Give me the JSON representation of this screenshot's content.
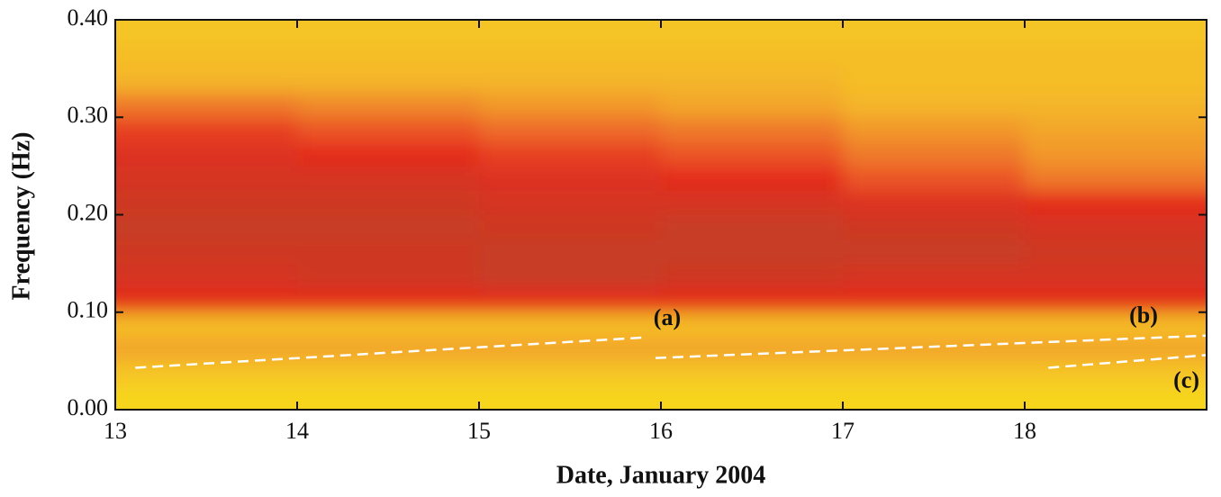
{
  "chart_data": {
    "type": "heatmap",
    "x_label": "Date, January 2004",
    "y_label": "Frequency (Hz)",
    "xlim": [
      13,
      19
    ],
    "ylim": [
      0,
      0.4
    ],
    "xticks": [
      13,
      14,
      15,
      16,
      17,
      18
    ],
    "yticks": [
      {
        "value": 0,
        "label": "0.00"
      },
      {
        "value": 0.1,
        "label": "0.10"
      },
      {
        "value": 0.2,
        "label": "0.20"
      },
      {
        "value": 0.3,
        "label": "0.30"
      },
      {
        "value": 0.4,
        "label": "0.40"
      }
    ],
    "xbins": [
      13,
      14,
      15,
      16,
      17,
      18,
      19
    ],
    "ybins": [
      0,
      0.025,
      0.05,
      0.075,
      0.1,
      0.125,
      0.15,
      0.175,
      0.2,
      0.225,
      0.25,
      0.275,
      0.3,
      0.325,
      0.35,
      0.375,
      0.4
    ],
    "z": [
      [
        0.1,
        0.1,
        0.1,
        0.1,
        0.1,
        0.1
      ],
      [
        0.2,
        0.2,
        0.2,
        0.2,
        0.2,
        0.2
      ],
      [
        0.35,
        0.35,
        0.35,
        0.35,
        0.35,
        0.35
      ],
      [
        0.25,
        0.25,
        0.25,
        0.25,
        0.25,
        0.25
      ],
      [
        0.7,
        0.7,
        0.7,
        0.7,
        0.7,
        0.7
      ],
      [
        0.8,
        0.85,
        0.9,
        0.85,
        0.8,
        0.8
      ],
      [
        0.85,
        0.85,
        0.9,
        0.9,
        0.9,
        0.85
      ],
      [
        0.9,
        0.9,
        0.85,
        0.9,
        0.85,
        0.8
      ],
      [
        0.85,
        0.85,
        0.8,
        0.8,
        0.75,
        0.7
      ],
      [
        0.8,
        0.8,
        0.75,
        0.7,
        0.6,
        0.5
      ],
      [
        0.75,
        0.7,
        0.65,
        0.6,
        0.5,
        0.4
      ],
      [
        0.65,
        0.6,
        0.55,
        0.5,
        0.4,
        0.35
      ],
      [
        0.5,
        0.45,
        0.4,
        0.35,
        0.3,
        0.3
      ],
      [
        0.3,
        0.3,
        0.3,
        0.3,
        0.25,
        0.25
      ],
      [
        0.25,
        0.25,
        0.25,
        0.25,
        0.25,
        0.25
      ],
      [
        0.2,
        0.2,
        0.2,
        0.2,
        0.2,
        0.2
      ]
    ],
    "series": [
      {
        "name": "(a)",
        "color": "#ffffff",
        "x": [
          13.11,
          15.9
        ],
        "values": [
          0.043,
          0.074
        ]
      },
      {
        "name": "(b)",
        "color": "#ffffff",
        "x": [
          15.97,
          19
        ],
        "values": [
          0.053,
          0.076
        ]
      },
      {
        "name": "(c)",
        "color": "#ffffff",
        "x": [
          18.13,
          19
        ],
        "values": [
          0.043,
          0.056
        ]
      }
    ]
  }
}
